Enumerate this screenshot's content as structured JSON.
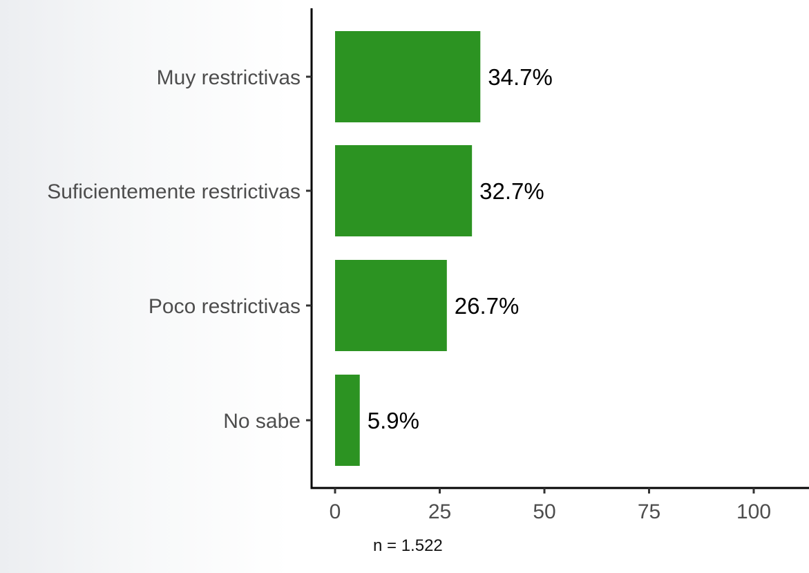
{
  "chart_data": {
    "type": "bar",
    "orientation": "horizontal",
    "categories": [
      "Muy restrictivas",
      "Suficientemente restrictivas",
      "Poco restrictivas",
      "No sabe"
    ],
    "values": [
      34.7,
      32.7,
      26.7,
      5.9
    ],
    "value_labels": [
      "34.7%",
      "32.7%",
      "26.7%",
      "5.9%"
    ],
    "xlim": [
      0,
      100
    ],
    "x_ticks": [
      0,
      25,
      50,
      75,
      100
    ],
    "grid": false,
    "legend": "none",
    "bar_color": "#2c9322",
    "note": "n = 1.522"
  }
}
